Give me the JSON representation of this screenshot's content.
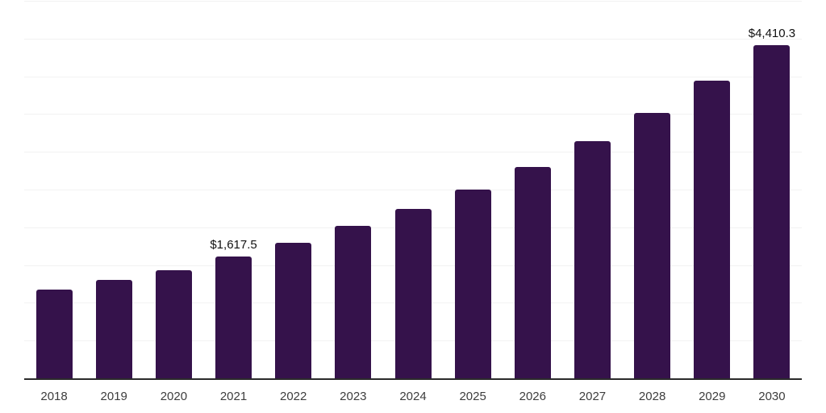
{
  "chart_data": {
    "type": "bar",
    "title": "",
    "xlabel": "",
    "ylabel": "",
    "categories": [
      "2018",
      "2019",
      "2020",
      "2021",
      "2022",
      "2023",
      "2024",
      "2025",
      "2026",
      "2027",
      "2028",
      "2029",
      "2030"
    ],
    "values": [
      1175,
      1300,
      1430,
      1617.5,
      1795,
      2020,
      2245,
      2500,
      2800,
      3140,
      3515,
      3940,
      4410.3
    ],
    "data_labels": [
      null,
      null,
      null,
      "$1,617.5",
      null,
      null,
      null,
      null,
      null,
      null,
      null,
      null,
      "$4,410.3"
    ],
    "ylim": [
      0,
      5000
    ],
    "gridline_step": 500,
    "grid": "horizontal-only",
    "legend": "none",
    "y_axis_tick_labels": "none",
    "colors": {
      "bar": "#35124B",
      "background": "#ffffff",
      "gridline": "#f2f2f2",
      "axis_line": "#2b2b2b",
      "data_label_text": "#111111",
      "tick_label_text": "#3d3d3d"
    }
  }
}
